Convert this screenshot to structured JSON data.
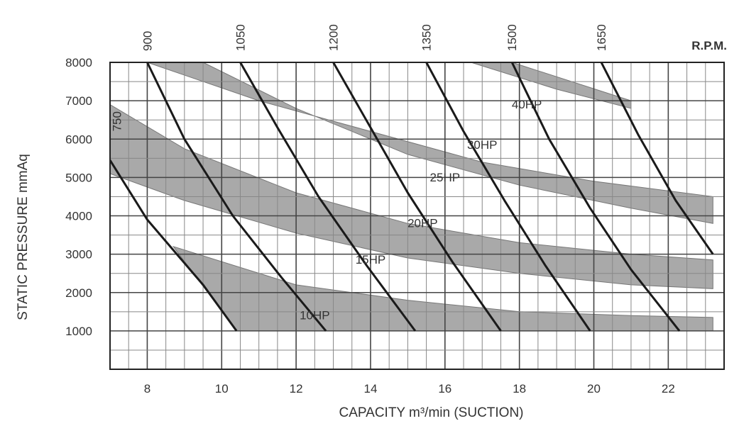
{
  "chart_data": {
    "type": "line",
    "title": "",
    "xlabel": "CAPACITY m³/min (SUCTION)",
    "ylabel": "STATIC PRESSURE mmAq",
    "x2label": "R.P.M.",
    "xlim": [
      7,
      23.5
    ],
    "ylim": [
      0,
      8000
    ],
    "xticks": [
      "8",
      "10",
      "12",
      "14",
      "16",
      "18",
      "20",
      "22"
    ],
    "yticks": [
      "1000",
      "2000",
      "3000",
      "4000",
      "5000",
      "6000",
      "7000",
      "8000"
    ],
    "grid": true,
    "series": [
      {
        "name": "750",
        "points": [
          [
            7.0,
            5450
          ],
          [
            8.0,
            3900
          ],
          [
            9.5,
            2200
          ],
          [
            10.4,
            1000
          ]
        ]
      },
      {
        "name": "900",
        "points": [
          [
            8.0,
            8000
          ],
          [
            9.0,
            6000
          ],
          [
            10.3,
            4000
          ],
          [
            11.6,
            2400
          ],
          [
            12.8,
            1000
          ]
        ]
      },
      {
        "name": "1050",
        "points": [
          [
            10.5,
            8000
          ],
          [
            11.5,
            6300
          ],
          [
            12.6,
            4500
          ],
          [
            13.9,
            2700
          ],
          [
            15.2,
            1000
          ]
        ]
      },
      {
        "name": "1200",
        "points": [
          [
            13.0,
            8000
          ],
          [
            14.0,
            6300
          ],
          [
            15.0,
            4600
          ],
          [
            16.2,
            2800
          ],
          [
            17.5,
            1000
          ]
        ]
      },
      {
        "name": "1350",
        "points": [
          [
            15.5,
            8000
          ],
          [
            16.5,
            6200
          ],
          [
            17.6,
            4400
          ],
          [
            18.7,
            2700
          ],
          [
            19.9,
            1000
          ]
        ]
      },
      {
        "name": "1500",
        "points": [
          [
            17.8,
            8000
          ],
          [
            18.8,
            6000
          ],
          [
            19.9,
            4200
          ],
          [
            21.0,
            2600
          ],
          [
            22.3,
            1000
          ]
        ]
      },
      {
        "name": "1650",
        "points": [
          [
            20.2,
            8000
          ],
          [
            21.2,
            6100
          ],
          [
            22.2,
            4400
          ],
          [
            23.2,
            3000
          ]
        ]
      }
    ],
    "power_bands": [
      {
        "name": "10HP",
        "label_at": [
          12.5,
          1300
        ],
        "upper": [
          [
            8.7,
            3200
          ],
          [
            12.0,
            2200
          ],
          [
            15.0,
            1800
          ],
          [
            18.0,
            1500
          ],
          [
            21.0,
            1400
          ],
          [
            23.2,
            1350
          ]
        ],
        "lower": [
          [
            10.4,
            1000
          ],
          [
            23.2,
            1000
          ]
        ]
      },
      {
        "name": "15HP",
        "label_at": [
          14.0,
          2750
        ],
        "upper": [
          [
            7.0,
            6900
          ],
          [
            9.0,
            5750
          ],
          [
            12.0,
            4600
          ],
          [
            15.0,
            3800
          ],
          [
            18.0,
            3300
          ],
          [
            21.0,
            3000
          ],
          [
            23.2,
            2850
          ]
        ],
        "lower": [
          [
            7.0,
            5100
          ],
          [
            9.0,
            4400
          ],
          [
            12.0,
            3550
          ],
          [
            15.0,
            2900
          ],
          [
            18.0,
            2500
          ],
          [
            21.0,
            2200
          ],
          [
            23.2,
            2100
          ]
        ]
      },
      {
        "name": "20HP",
        "label_at": [
          15.4,
          3700
        ]
      },
      {
        "name": "25HP",
        "label_at": [
          16.0,
          4900
        ],
        "upper": [
          [
            8.0,
            8000
          ],
          [
            11.0,
            7000
          ],
          [
            14.0,
            6200
          ],
          [
            17.0,
            5400
          ],
          [
            20.0,
            4900
          ],
          [
            23.2,
            4500
          ]
        ],
        "lower": [
          [
            9.5,
            8000
          ],
          [
            12.0,
            6800
          ],
          [
            15.0,
            5600
          ],
          [
            18.0,
            4800
          ],
          [
            21.0,
            4200
          ],
          [
            23.2,
            3800
          ]
        ]
      },
      {
        "name": "30HP",
        "label_at": [
          17.0,
          5750
        ]
      },
      {
        "name": "40HP",
        "label_at": [
          18.2,
          6800
        ],
        "upper": [
          [
            16.7,
            8000
          ],
          [
            19.0,
            7300
          ],
          [
            21.0,
            6800
          ]
        ],
        "lower": [
          [
            17.8,
            8000
          ],
          [
            21.0,
            7000
          ]
        ]
      }
    ]
  }
}
